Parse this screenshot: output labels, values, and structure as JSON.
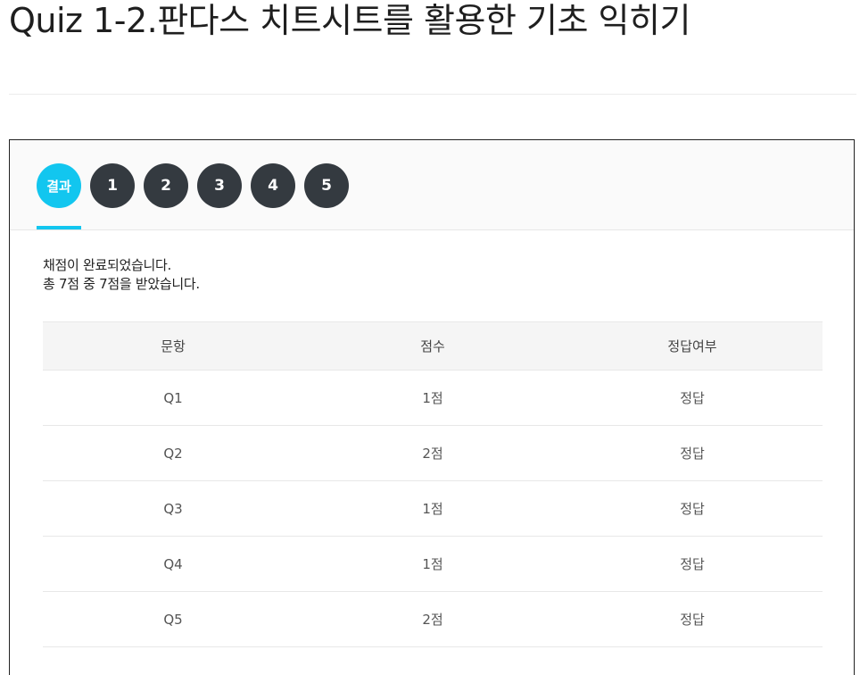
{
  "page": {
    "title": "Quiz 1-2.판다스 치트시트를 활용한 기초 익히기"
  },
  "tabs": [
    {
      "label": "결과",
      "active": true
    },
    {
      "label": "1",
      "active": false
    },
    {
      "label": "2",
      "active": false
    },
    {
      "label": "3",
      "active": false
    },
    {
      "label": "4",
      "active": false
    },
    {
      "label": "5",
      "active": false
    }
  ],
  "result": {
    "line1": "채점이 완료되었습니다.",
    "line2": "총 7점 중 7점을 받았습니다."
  },
  "table": {
    "headers": [
      "문항",
      "점수",
      "정답여부"
    ],
    "rows": [
      [
        "Q1",
        "1점",
        "정답"
      ],
      [
        "Q2",
        "2점",
        "정답"
      ],
      [
        "Q3",
        "1점",
        "정답"
      ],
      [
        "Q4",
        "1점",
        "정답"
      ],
      [
        "Q5",
        "2점",
        "정답"
      ]
    ]
  },
  "colors": {
    "accent": "#12c6ef",
    "tab_default": "#343a40"
  }
}
